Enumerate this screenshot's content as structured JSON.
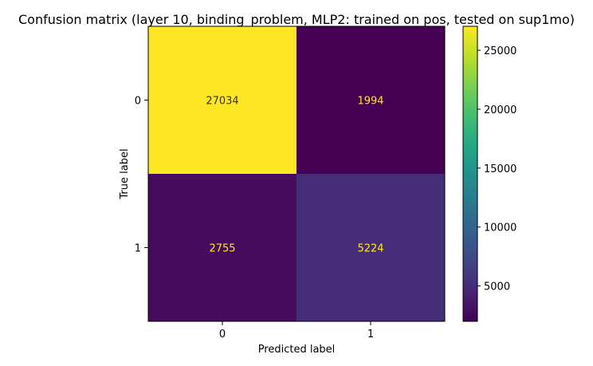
{
  "chart_data": {
    "type": "heatmap",
    "title": "Confusion matrix (layer 10, binding_problem, MLP2: trained on pos, tested on sup1mo)",
    "xlabel": "Predicted label",
    "ylabel": "True label",
    "x_categories": [
      "0",
      "1"
    ],
    "y_categories": [
      "0",
      "1"
    ],
    "matrix": [
      [
        27034,
        1994
      ],
      [
        2755,
        5224
      ]
    ],
    "colormap": "viridis",
    "colorbar": {
      "ticks": [
        5000,
        10000,
        15000,
        20000,
        25000
      ],
      "tick_labels": [
        "5000",
        "10000",
        "15000",
        "20000",
        "25000"
      ]
    },
    "text_color_on_dark": "#fde725",
    "text_color_on_light": "#333333",
    "grid": false
  }
}
